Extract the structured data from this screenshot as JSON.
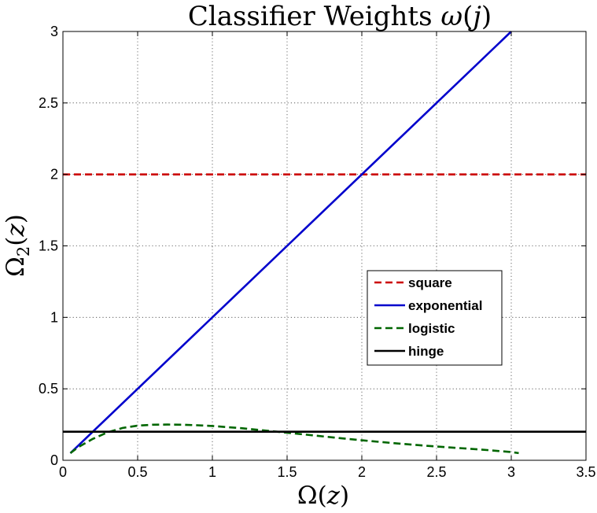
{
  "chart_data": {
    "type": "line",
    "title": "Classifier Weights ω(j)",
    "title_parts": {
      "prefix": "Classifier Weights ",
      "var": "ω",
      "arg": "j"
    },
    "xlabel": "Ω(z)",
    "xlabel_parts": {
      "fn": "Ω",
      "arg": "z"
    },
    "ylabel": "Ω2(z)",
    "ylabel_parts": {
      "fn": "Ω",
      "sub": "2",
      "arg": "z"
    },
    "xlim": [
      0,
      3.5
    ],
    "ylim": [
      0,
      3
    ],
    "xticks": [
      0,
      0.5,
      1,
      1.5,
      2,
      2.5,
      3,
      3.5
    ],
    "yticks": [
      0,
      0.5,
      1,
      1.5,
      2,
      2.5,
      3
    ],
    "xtick_labels": [
      "0",
      "0.5",
      "1",
      "1.5",
      "2",
      "2.5",
      "3",
      "3.5"
    ],
    "ytick_labels": [
      "0",
      "0.5",
      "1",
      "1.5",
      "2",
      "2.5",
      "3"
    ],
    "grid": true,
    "legend_position": "center-right",
    "series": [
      {
        "name": "square",
        "color": "#cc0000",
        "dash": "dashed",
        "x": [
          0,
          3.5
        ],
        "y": [
          2,
          2
        ]
      },
      {
        "name": "exponential",
        "color": "#0000cc",
        "dash": "solid",
        "x": [
          0.05,
          3.0
        ],
        "y": [
          0.05,
          3.0
        ]
      },
      {
        "name": "logistic",
        "color": "#006600",
        "dash": "dashed",
        "x": [
          0.05,
          0.1,
          0.2,
          0.3,
          0.4,
          0.5,
          0.6,
          0.7,
          0.8,
          0.9,
          1.0,
          1.2,
          1.4,
          1.6,
          1.8,
          2.0,
          2.2,
          2.4,
          2.6,
          2.8,
          3.0,
          3.05
        ],
        "y": [
          0.05,
          0.09,
          0.15,
          0.196,
          0.226,
          0.242,
          0.249,
          0.25,
          0.249,
          0.245,
          0.24,
          0.224,
          0.203,
          0.182,
          0.161,
          0.14,
          0.121,
          0.104,
          0.089,
          0.075,
          0.058,
          0.05
        ]
      },
      {
        "name": "hinge",
        "color": "#000000",
        "dash": "solid",
        "x": [
          0,
          3.5
        ],
        "y": [
          0.2,
          0.2
        ]
      }
    ]
  }
}
